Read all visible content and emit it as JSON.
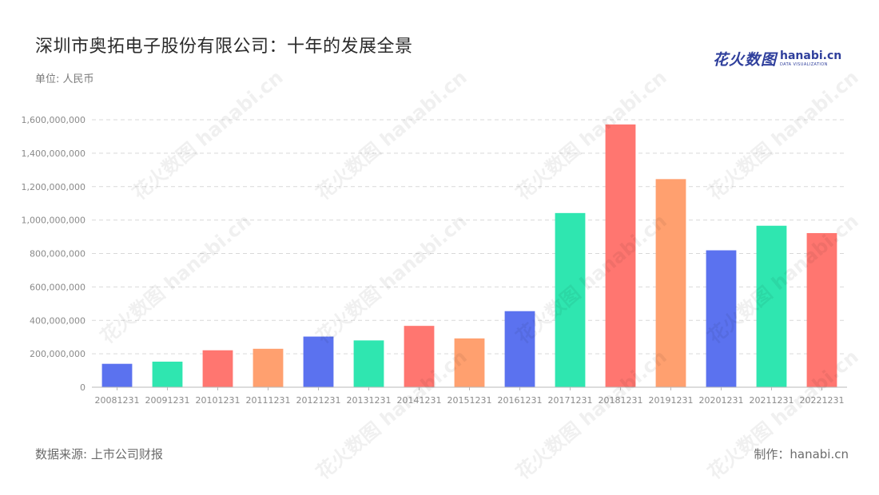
{
  "header": {
    "title": "深圳市奥拓电子股份有限公司：十年的发展全景",
    "unit": "单位: 人民币"
  },
  "logo": {
    "cn": "花火数图",
    "en": "hanabi.cn",
    "sub": "DATA VISUALIZATION"
  },
  "footer": {
    "source": "数据来源: 上市公司财报",
    "credit": "制作：hanabi.cn"
  },
  "watermark": {
    "text": "花火数图 hanabi.cn"
  },
  "colors": {
    "blue": "#5b72ef",
    "green": "#2fe6b0",
    "red": "#ff7670",
    "orange": "#ffa06f",
    "grid": "#d9d9d9",
    "axis": "#b8b8b8"
  },
  "chart_data": {
    "type": "bar",
    "categories": [
      "20081231",
      "20091231",
      "20101231",
      "20111231",
      "20121231",
      "20131231",
      "20141231",
      "20151231",
      "20161231",
      "20171231",
      "20181231",
      "20191231",
      "20201231",
      "20211231",
      "20221231"
    ],
    "values": [
      140000000,
      153000000,
      221000000,
      230000000,
      303000000,
      280000000,
      367000000,
      292000000,
      455000000,
      1042000000,
      1572000000,
      1245000000,
      819000000,
      966000000,
      922000000
    ],
    "bar_colors": [
      "#5b72ef",
      "#2fe6b0",
      "#ff7670",
      "#ffa06f",
      "#5b72ef",
      "#2fe6b0",
      "#ff7670",
      "#ffa06f",
      "#5b72ef",
      "#2fe6b0",
      "#ff7670",
      "#ffa06f",
      "#5b72ef",
      "#2fe6b0",
      "#ff7670"
    ],
    "ylim": [
      0,
      1600000000
    ],
    "yticks": [
      0,
      200000000,
      400000000,
      600000000,
      800000000,
      1000000000,
      1200000000,
      1400000000,
      1600000000
    ],
    "ytick_labels": [
      "0",
      "200,000,000",
      "400,000,000",
      "600,000,000",
      "800,000,000",
      "1,000,000,000",
      "1,200,000,000",
      "1,400,000,000",
      "1,600,000,000"
    ],
    "grid": true,
    "xlabel": "",
    "ylabel": ""
  }
}
